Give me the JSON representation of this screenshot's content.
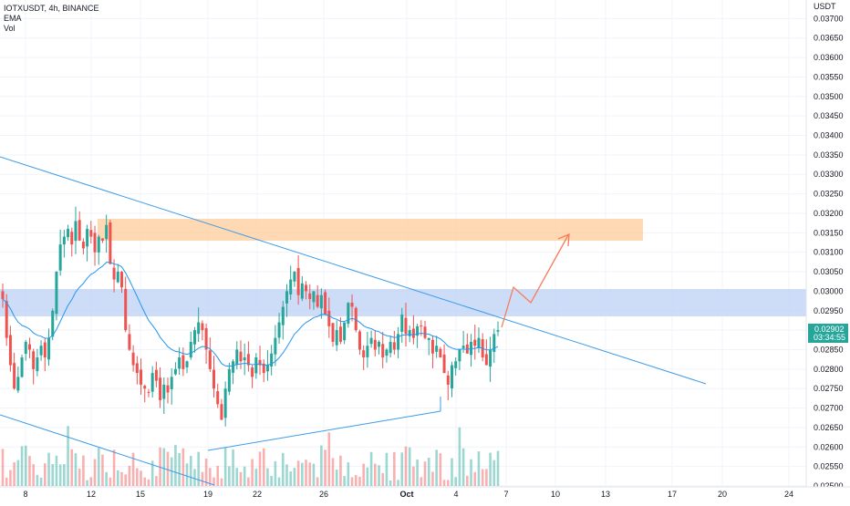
{
  "header": {
    "title": "IOTXUSDT, 4h, BINANCE",
    "indicators": [
      "EMA",
      "Vol"
    ]
  },
  "price_axis": {
    "currency": "USDT",
    "ticks": [
      "0.03700",
      "0.03650",
      "0.03600",
      "0.03550",
      "0.03500",
      "0.03450",
      "0.03400",
      "0.03350",
      "0.03300",
      "0.03250",
      "0.03200",
      "0.03150",
      "0.03100",
      "0.03050",
      "0.03000",
      "0.02950",
      "0.02900",
      "0.02850",
      "0.02800",
      "0.02750",
      "0.02700",
      "0.02650",
      "0.02600",
      "0.02550",
      "0.02500"
    ],
    "last_price": "0.02902",
    "countdown": "03:34:55"
  },
  "time_axis": {
    "ticks": [
      "8",
      "12",
      "15",
      "19",
      "22",
      "26",
      "Oct",
      "4",
      "7",
      "10",
      "13",
      "17",
      "20",
      "24"
    ]
  },
  "colors": {
    "up": "#26a69a",
    "down": "#ef5350",
    "ema": "#2196f3",
    "trendline": "#3d9be9",
    "supply_zone": "#ffcc99",
    "demand_zone": "#c7d8f7",
    "projection": "#f77c5a"
  },
  "chart_data": {
    "type": "candlestick",
    "symbol": "IOTXUSDT",
    "interval": "4h",
    "exchange": "BINANCE",
    "ylim": [
      0.025,
      0.0371
    ],
    "x_tick_labels": [
      "8",
      "12",
      "15",
      "19",
      "22",
      "26",
      "Oct",
      "4",
      "7",
      "10",
      "13",
      "17",
      "20",
      "24"
    ],
    "ohlc_close": [
      0.0298,
      0.0288,
      0.0281,
      0.0275,
      0.0278,
      0.0283,
      0.0287,
      0.0285,
      0.028,
      0.0283,
      0.0286,
      0.0283,
      0.0288,
      0.0295,
      0.0305,
      0.0312,
      0.0314,
      0.0316,
      0.0312,
      0.0318,
      0.0313,
      0.0311,
      0.0316,
      0.0314,
      0.031,
      0.0314,
      0.0313,
      0.0317,
      0.0307,
      0.0303,
      0.0305,
      0.0301,
      0.029,
      0.0285,
      0.0281,
      0.0279,
      0.0276,
      0.0275,
      0.0274,
      0.0279,
      0.0277,
      0.0272,
      0.0276,
      0.0274,
      0.0278,
      0.028,
      0.0283,
      0.028,
      0.0282,
      0.0287,
      0.029,
      0.0292,
      0.029,
      0.0285,
      0.028,
      0.0275,
      0.0271,
      0.0267,
      0.0275,
      0.028,
      0.0282,
      0.0285,
      0.0282,
      0.0283,
      0.0281,
      0.0278,
      0.0283,
      0.0281,
      0.0279,
      0.0281,
      0.0284,
      0.0288,
      0.0292,
      0.0296,
      0.03,
      0.0303,
      0.0305,
      0.0299,
      0.0302,
      0.03,
      0.0298,
      0.03,
      0.0296,
      0.0299,
      0.0294,
      0.0291,
      0.0287,
      0.029,
      0.0287,
      0.0292,
      0.0297,
      0.0296,
      0.029,
      0.0285,
      0.0283,
      0.0286,
      0.0288,
      0.0285,
      0.0287,
      0.0283,
      0.0285,
      0.0287,
      0.0285,
      0.0289,
      0.0294,
      0.0289,
      0.029,
      0.0288,
      0.0291,
      0.0291,
      0.0288,
      0.0288,
      0.0284,
      0.0286,
      0.0283,
      0.0279,
      0.0276,
      0.0281,
      0.0282,
      0.0285,
      0.0286,
      0.0284,
      0.0287,
      0.0286,
      0.0288,
      0.0283,
      0.0281,
      0.0285,
      0.0289,
      0.029
    ],
    "ema_series": "EMA (blue line)",
    "volume_series": "Vol",
    "annotations": {
      "supply_zone": [
        0.0313,
        0.03185
      ],
      "demand_zone": [
        0.02932,
        0.03002
      ],
      "descending_trendline": [
        [
          0,
          0.0334
        ],
        [
          0.828,
          0.0276
        ]
      ],
      "rising_trendline": [
        [
          0.246,
          0.0259
        ],
        [
          0.518,
          0.0269
        ]
      ],
      "lower_channel_line": [
        [
          0,
          0.027
        ],
        [
          0.25,
          0.025
        ]
      ],
      "projection_path": [
        0.02915,
        0.03005,
        0.0297,
        0.0314
      ]
    },
    "last_price": 0.02902
  }
}
